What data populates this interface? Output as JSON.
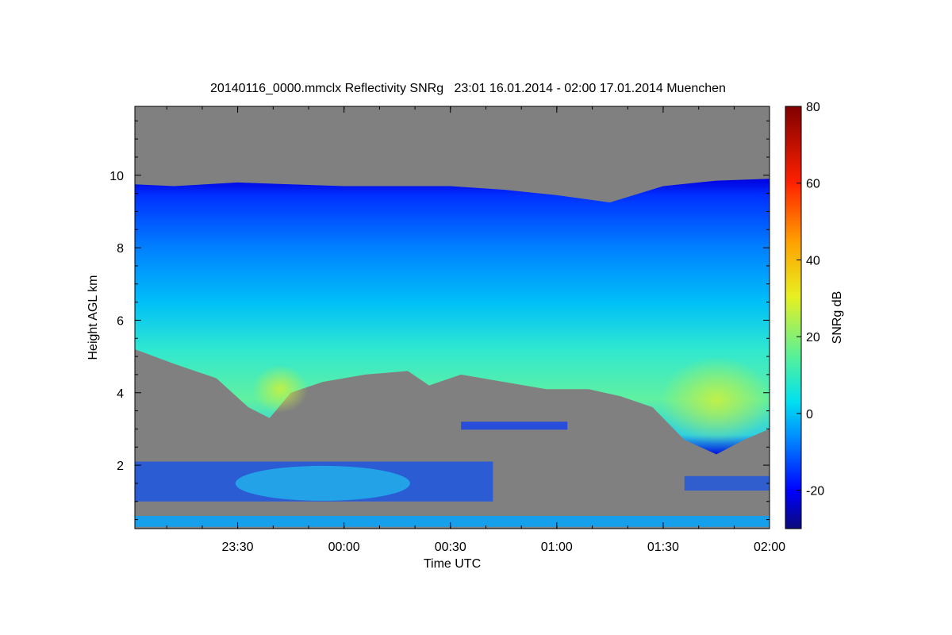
{
  "chart_data": {
    "type": "heatmap",
    "title": "20140116_0000.mmclx Reflectivity SNRg   23:01 16.01.2014 - 02:00 17.01.2014 Muenchen",
    "xlabel": "Time UTC",
    "ylabel": "Height AGL km",
    "colorbar_label": "SNRg dB",
    "x_range_hours_from_midnight": [
      -0.983,
      2.0
    ],
    "y_range_km": [
      0.25,
      11.9
    ],
    "color_range": [
      -30,
      80
    ],
    "x_ticks": [
      {
        "label": "23:30",
        "value": -0.5
      },
      {
        "label": "00:00",
        "value": 0.0
      },
      {
        "label": "00:30",
        "value": 0.5
      },
      {
        "label": "01:00",
        "value": 1.0
      },
      {
        "label": "01:30",
        "value": 1.5
      },
      {
        "label": "02:00",
        "value": 2.0
      }
    ],
    "y_ticks": [
      {
        "label": "2",
        "value": 2
      },
      {
        "label": "4",
        "value": 4
      },
      {
        "label": "6",
        "value": 6
      },
      {
        "label": "8",
        "value": 8
      },
      {
        "label": "10",
        "value": 10
      }
    ],
    "colorbar_ticks": [
      {
        "label": "-20",
        "value": -20
      },
      {
        "label": "0",
        "value": 0
      },
      {
        "label": "20",
        "value": 20
      },
      {
        "label": "40",
        "value": 40
      },
      {
        "label": "60",
        "value": 60
      },
      {
        "label": "80",
        "value": 80
      }
    ],
    "colormap": [
      "#0a0a7a",
      "#0000ff",
      "#0090ff",
      "#00e0f0",
      "#50f0a0",
      "#e8f020",
      "#ffa000",
      "#ff2000",
      "#800000"
    ],
    "background_color": "#808080",
    "cloud_top_km": [
      [
        -0.983,
        9.75
      ],
      [
        -0.8,
        9.7
      ],
      [
        -0.5,
        9.8
      ],
      [
        -0.25,
        9.75
      ],
      [
        0.0,
        9.7
      ],
      [
        0.25,
        9.7
      ],
      [
        0.5,
        9.7
      ],
      [
        0.75,
        9.6
      ],
      [
        1.0,
        9.45
      ],
      [
        1.25,
        9.25
      ],
      [
        1.5,
        9.7
      ],
      [
        1.75,
        9.85
      ],
      [
        2.0,
        9.9
      ]
    ],
    "cloud_base_km": [
      [
        -0.983,
        5.2
      ],
      [
        -0.8,
        4.8
      ],
      [
        -0.6,
        4.4
      ],
      [
        -0.45,
        3.6
      ],
      [
        -0.35,
        3.3
      ],
      [
        -0.25,
        4.0
      ],
      [
        -0.1,
        4.3
      ],
      [
        0.1,
        4.5
      ],
      [
        0.3,
        4.6
      ],
      [
        0.4,
        4.2
      ],
      [
        0.55,
        4.5
      ],
      [
        0.75,
        4.3
      ],
      [
        0.95,
        4.1
      ],
      [
        1.15,
        4.1
      ],
      [
        1.3,
        3.9
      ],
      [
        1.45,
        3.6
      ],
      [
        1.6,
        2.7
      ],
      [
        1.75,
        2.3
      ],
      [
        1.88,
        2.7
      ],
      [
        2.0,
        3.0
      ]
    ],
    "peak_snr_dB": 25,
    "low_cloud_layers_km": [
      [
        0.3,
        0.6
      ],
      [
        1.0,
        2.1
      ]
    ]
  }
}
